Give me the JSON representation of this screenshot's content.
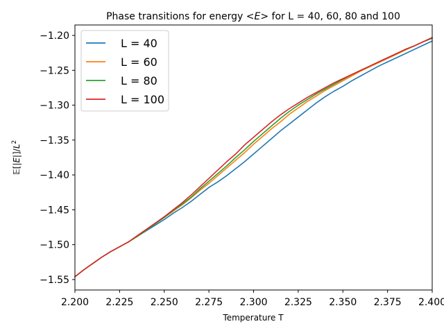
{
  "chart_data": {
    "type": "line",
    "title": "Phase transitions for energy <E> for L = 40, 60, 80 and 100",
    "title_parts": {
      "prefix": "Phase transitions for energy ",
      "lt": "<",
      "sym": "E",
      "gt": ">",
      "suffix": " for L = 40, 60, 80 and 100"
    },
    "xlabel": "Temperature T",
    "ylabel": "𝔼[|E|]/L²",
    "ylabel_parts": {
      "base": "𝔼[|",
      "sym": "E",
      "mid": "|]/",
      "L": "L",
      "exp": "2"
    },
    "xlim": [
      2.2,
      2.4
    ],
    "ylim": [
      -1.565,
      -1.185
    ],
    "xticks": [
      2.2,
      2.225,
      2.25,
      2.275,
      2.3,
      2.325,
      2.35,
      2.375,
      2.4
    ],
    "xtick_labels": [
      "2.200",
      "2.225",
      "2.250",
      "2.275",
      "2.300",
      "2.325",
      "2.350",
      "2.375",
      "2.400"
    ],
    "yticks": [
      -1.55,
      -1.5,
      -1.45,
      -1.4,
      -1.35,
      -1.3,
      -1.25,
      -1.2
    ],
    "ytick_labels": [
      "−1.55",
      "−1.50",
      "−1.45",
      "−1.40",
      "−1.35",
      "−1.30",
      "−1.25",
      "−1.20"
    ],
    "grid": false,
    "legend_position": "top-left",
    "series": [
      {
        "name": "L = 40",
        "color": "#1f77b4",
        "x": [
          2.2,
          2.205,
          2.21,
          2.215,
          2.22,
          2.225,
          2.23,
          2.235,
          2.24,
          2.245,
          2.25,
          2.255,
          2.26,
          2.265,
          2.27,
          2.275,
          2.28,
          2.285,
          2.29,
          2.295,
          2.3,
          2.305,
          2.31,
          2.315,
          2.32,
          2.325,
          2.33,
          2.335,
          2.34,
          2.345,
          2.35,
          2.355,
          2.36,
          2.365,
          2.37,
          2.375,
          2.38,
          2.385,
          2.39,
          2.395,
          2.4
        ],
        "y": [
          -1.546,
          -1.536,
          -1.527,
          -1.518,
          -1.51,
          -1.503,
          -1.496,
          -1.488,
          -1.48,
          -1.472,
          -1.464,
          -1.455,
          -1.447,
          -1.438,
          -1.428,
          -1.418,
          -1.41,
          -1.401,
          -1.391,
          -1.381,
          -1.37,
          -1.359,
          -1.348,
          -1.337,
          -1.327,
          -1.317,
          -1.307,
          -1.297,
          -1.288,
          -1.28,
          -1.273,
          -1.265,
          -1.258,
          -1.251,
          -1.244,
          -1.238,
          -1.232,
          -1.226,
          -1.22,
          -1.214,
          -1.208
        ]
      },
      {
        "name": "L = 60",
        "color": "#ff7f0e",
        "x": [
          2.2,
          2.205,
          2.21,
          2.215,
          2.22,
          2.225,
          2.23,
          2.235,
          2.24,
          2.245,
          2.25,
          2.255,
          2.26,
          2.265,
          2.27,
          2.275,
          2.28,
          2.285,
          2.29,
          2.295,
          2.3,
          2.305,
          2.31,
          2.315,
          2.32,
          2.325,
          2.33,
          2.335,
          2.34,
          2.345,
          2.35,
          2.355,
          2.36,
          2.365,
          2.37,
          2.375,
          2.38,
          2.385,
          2.39,
          2.395,
          2.4
        ],
        "y": [
          -1.546,
          -1.536,
          -1.527,
          -1.518,
          -1.51,
          -1.503,
          -1.496,
          -1.488,
          -1.479,
          -1.47,
          -1.461,
          -1.452,
          -1.443,
          -1.433,
          -1.422,
          -1.412,
          -1.401,
          -1.39,
          -1.379,
          -1.368,
          -1.356,
          -1.345,
          -1.334,
          -1.324,
          -1.313,
          -1.304,
          -1.295,
          -1.287,
          -1.279,
          -1.272,
          -1.265,
          -1.258,
          -1.251,
          -1.245,
          -1.239,
          -1.233,
          -1.227,
          -1.221,
          -1.215,
          -1.209,
          -1.204
        ]
      },
      {
        "name": "L = 80",
        "color": "#2ca02c",
        "x": [
          2.2,
          2.205,
          2.21,
          2.215,
          2.22,
          2.225,
          2.23,
          2.235,
          2.24,
          2.245,
          2.25,
          2.255,
          2.26,
          2.265,
          2.27,
          2.275,
          2.28,
          2.285,
          2.29,
          2.295,
          2.3,
          2.305,
          2.31,
          2.315,
          2.32,
          2.325,
          2.33,
          2.335,
          2.34,
          2.345,
          2.35,
          2.355,
          2.36,
          2.365,
          2.37,
          2.375,
          2.38,
          2.385,
          2.39,
          2.395,
          2.4
        ],
        "y": [
          -1.546,
          -1.536,
          -1.527,
          -1.518,
          -1.51,
          -1.503,
          -1.496,
          -1.488,
          -1.479,
          -1.47,
          -1.461,
          -1.451,
          -1.442,
          -1.432,
          -1.42,
          -1.409,
          -1.398,
          -1.387,
          -1.375,
          -1.364,
          -1.352,
          -1.341,
          -1.33,
          -1.319,
          -1.309,
          -1.3,
          -1.292,
          -1.284,
          -1.277,
          -1.27,
          -1.263,
          -1.256,
          -1.25,
          -1.244,
          -1.238,
          -1.232,
          -1.226,
          -1.22,
          -1.215,
          -1.209,
          -1.204
        ]
      },
      {
        "name": "L = 100",
        "color": "#d62728",
        "x": [
          2.2,
          2.205,
          2.21,
          2.215,
          2.22,
          2.225,
          2.23,
          2.235,
          2.24,
          2.245,
          2.25,
          2.255,
          2.26,
          2.265,
          2.27,
          2.275,
          2.28,
          2.285,
          2.29,
          2.295,
          2.3,
          2.305,
          2.31,
          2.315,
          2.32,
          2.325,
          2.33,
          2.335,
          2.34,
          2.345,
          2.35,
          2.355,
          2.36,
          2.365,
          2.37,
          2.375,
          2.38,
          2.385,
          2.39,
          2.395,
          2.4
        ],
        "y": [
          -1.546,
          -1.536,
          -1.527,
          -1.518,
          -1.51,
          -1.503,
          -1.496,
          -1.487,
          -1.478,
          -1.469,
          -1.46,
          -1.45,
          -1.44,
          -1.429,
          -1.417,
          -1.405,
          -1.393,
          -1.381,
          -1.37,
          -1.357,
          -1.346,
          -1.335,
          -1.324,
          -1.314,
          -1.305,
          -1.297,
          -1.289,
          -1.282,
          -1.275,
          -1.268,
          -1.262,
          -1.256,
          -1.25,
          -1.244,
          -1.238,
          -1.232,
          -1.226,
          -1.22,
          -1.215,
          -1.209,
          -1.203
        ]
      }
    ]
  }
}
